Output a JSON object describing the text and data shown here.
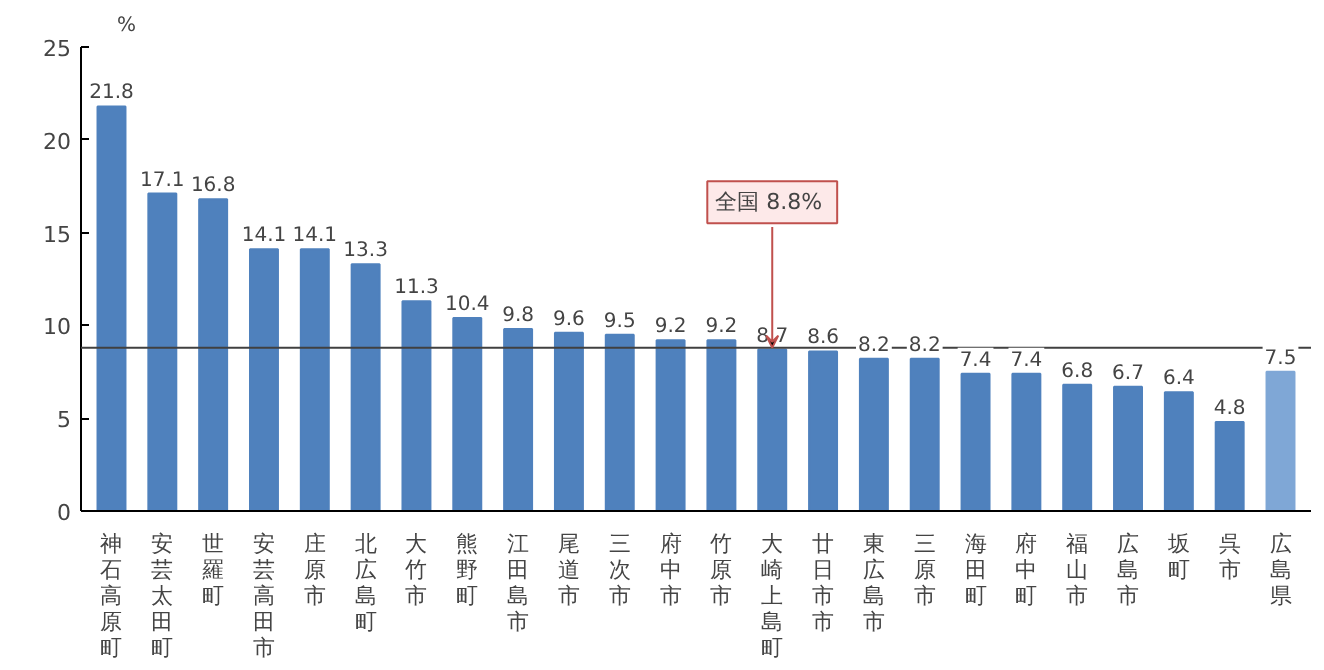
{
  "chart_data": {
    "type": "bar",
    "ylabel": "%",
    "categories": [
      "神石高原町",
      "安芸太田町",
      "世羅町",
      "安芸高田市",
      "庄原市",
      "北広島町",
      "大竹市",
      "熊野町",
      "江田島市",
      "尾道市",
      "三次市",
      "府中市",
      "竹原市",
      "大崎上島町",
      "廿日市市",
      "東広島市",
      "三原市",
      "海田町",
      "府中町",
      "福山市",
      "広島市",
      "坂町",
      "呉市",
      "広島県"
    ],
    "values": [
      21.8,
      17.1,
      16.8,
      14.1,
      14.1,
      13.3,
      11.3,
      10.4,
      9.8,
      9.6,
      9.5,
      9.2,
      9.2,
      8.7,
      8.6,
      8.2,
      8.2,
      7.4,
      7.4,
      6.8,
      6.7,
      6.4,
      4.8,
      7.5
    ],
    "colors": [
      "#4f81bd",
      "#4f81bd",
      "#4f81bd",
      "#4f81bd",
      "#4f81bd",
      "#4f81bd",
      "#4f81bd",
      "#4f81bd",
      "#4f81bd",
      "#4f81bd",
      "#4f81bd",
      "#4f81bd",
      "#4f81bd",
      "#4f81bd",
      "#4f81bd",
      "#4f81bd",
      "#4f81bd",
      "#4f81bd",
      "#4f81bd",
      "#4f81bd",
      "#4f81bd",
      "#4f81bd",
      "#4f81bd",
      "#7fa7d6"
    ],
    "ylim": [
      0,
      25
    ],
    "yticks": [
      0,
      5,
      10,
      15,
      20,
      25
    ],
    "grid": false,
    "data_labels": true,
    "ref_lines": [
      {
        "axis": "y",
        "value": 8.8,
        "label": "全国  8.8%",
        "color": "#404040"
      }
    ]
  }
}
